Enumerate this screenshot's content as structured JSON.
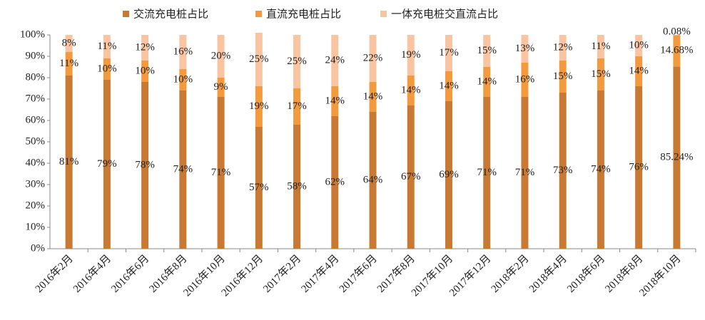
{
  "chart_data": {
    "type": "stacked_bar",
    "categories": [
      "2016年2月",
      "2016年4月",
      "2016年6月",
      "2016年8月",
      "2016年10月",
      "2016年12月",
      "2017年2月",
      "2017年4月",
      "2017年6月",
      "2017年8月",
      "2017年10月",
      "2017年12月",
      "2018年2月",
      "2018年4月",
      "2018年6月",
      "2018年8月",
      "2018年10月"
    ],
    "series": [
      {
        "name": "交流充电桩占比",
        "color": "#c87a35",
        "values": [
          81,
          79,
          78,
          74,
          71,
          57,
          58,
          62,
          64,
          67,
          69,
          71,
          71,
          73,
          74,
          76,
          85.24
        ],
        "value_labels": [
          "81%",
          "79%",
          "78%",
          "74%",
          "71%",
          "57%",
          "58%",
          "62%",
          "64%",
          "67%",
          "69%",
          "71%",
          "71%",
          "73%",
          "74%",
          "76%",
          "85.24%"
        ]
      },
      {
        "name": "直流充电桩占比",
        "color": "#f29a3d",
        "values": [
          11,
          10,
          10,
          10,
          9,
          19,
          17,
          14,
          14,
          14,
          14,
          14,
          16,
          15,
          15,
          14,
          14.68
        ],
        "value_labels": [
          "11%",
          "10%",
          "10%",
          "10%",
          "9%",
          "19%",
          "17%",
          "14%",
          "14%",
          "14%",
          "14%",
          "14%",
          "16%",
          "15%",
          "15%",
          "14%",
          "14.68%"
        ]
      },
      {
        "name": "一体充电桩交直流占比",
        "color": "#f8c4a2",
        "values": [
          8,
          11,
          12,
          16,
          20,
          25,
          25,
          24,
          22,
          19,
          17,
          15,
          13,
          12,
          11,
          10,
          0.08
        ],
        "value_labels": [
          "8%",
          "11%",
          "12%",
          "16%",
          "20%",
          "25%",
          "25%",
          "24%",
          "22%",
          "19%",
          "17%",
          "15%",
          "13%",
          "12%",
          "11%",
          "10%",
          "0.08%"
        ]
      }
    ],
    "ylim": [
      0,
      100
    ],
    "yticks": [
      {
        "value": 0,
        "label": "0%"
      },
      {
        "value": 10,
        "label": "10%"
      },
      {
        "value": 20,
        "label": "20%"
      },
      {
        "value": 30,
        "label": "30%"
      },
      {
        "value": 40,
        "label": "40%"
      },
      {
        "value": 50,
        "label": "50%"
      },
      {
        "value": 60,
        "label": "60%"
      },
      {
        "value": 70,
        "label": "70%"
      },
      {
        "value": 80,
        "label": "80%"
      },
      {
        "value": 90,
        "label": "90%"
      },
      {
        "value": 100,
        "label": "100%"
      }
    ],
    "legend": "top"
  }
}
